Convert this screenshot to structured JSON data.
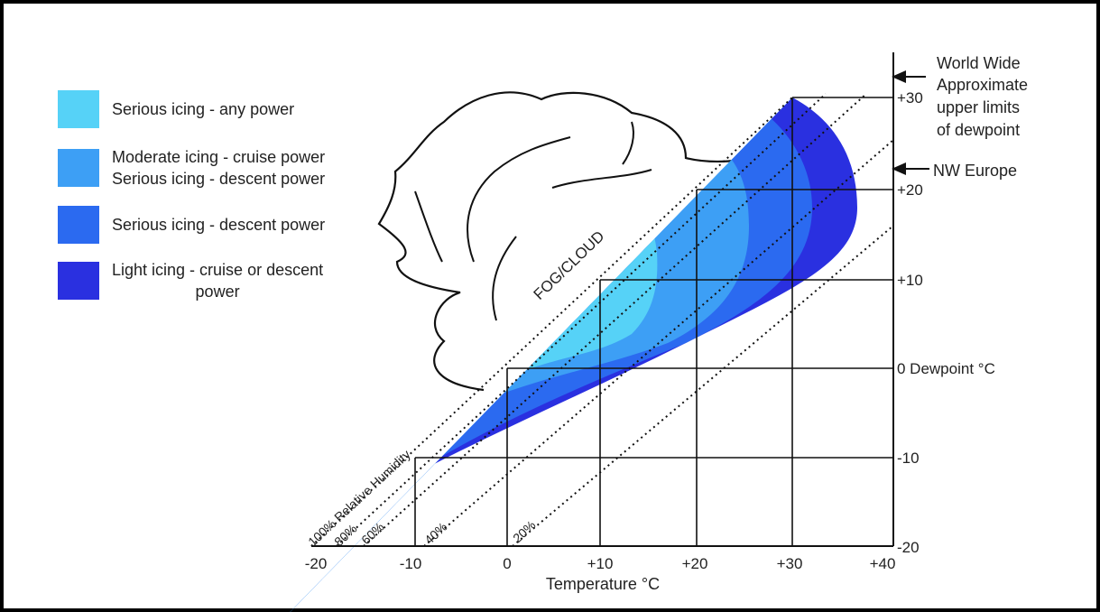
{
  "legend": [
    {
      "lines": [
        "Serious icing - any power"
      ],
      "color": "#56d2f7"
    },
    {
      "lines": [
        "Moderate icing - cruise power",
        "Serious icing - descent power"
      ],
      "color": "#3d9ff5"
    },
    {
      "lines": [
        "Serious icing - descent power"
      ],
      "color": "#2b6af0"
    },
    {
      "lines": [
        "Light icing - cruise or descent",
        "power"
      ],
      "color": "#2a30e0"
    }
  ],
  "axes": {
    "x_label": "Temperature °C",
    "x_ticks": [
      "-20",
      "-10",
      "0",
      "+10",
      "+20",
      "+30",
      "+40"
    ],
    "y_ticks": [
      "+30",
      "+20",
      "+10",
      "0 Dewpoint °C",
      "-10",
      "-20"
    ]
  },
  "humidity_labels": [
    "100% Relative Humidity",
    "80%",
    "60%",
    "40%",
    "20%"
  ],
  "fog_label": "FOG/CLOUD",
  "annotations": {
    "world_wide": [
      "World Wide",
      "Approximate",
      "upper limits",
      "of dewpoint"
    ],
    "nw_europe": "NW Europe"
  }
}
